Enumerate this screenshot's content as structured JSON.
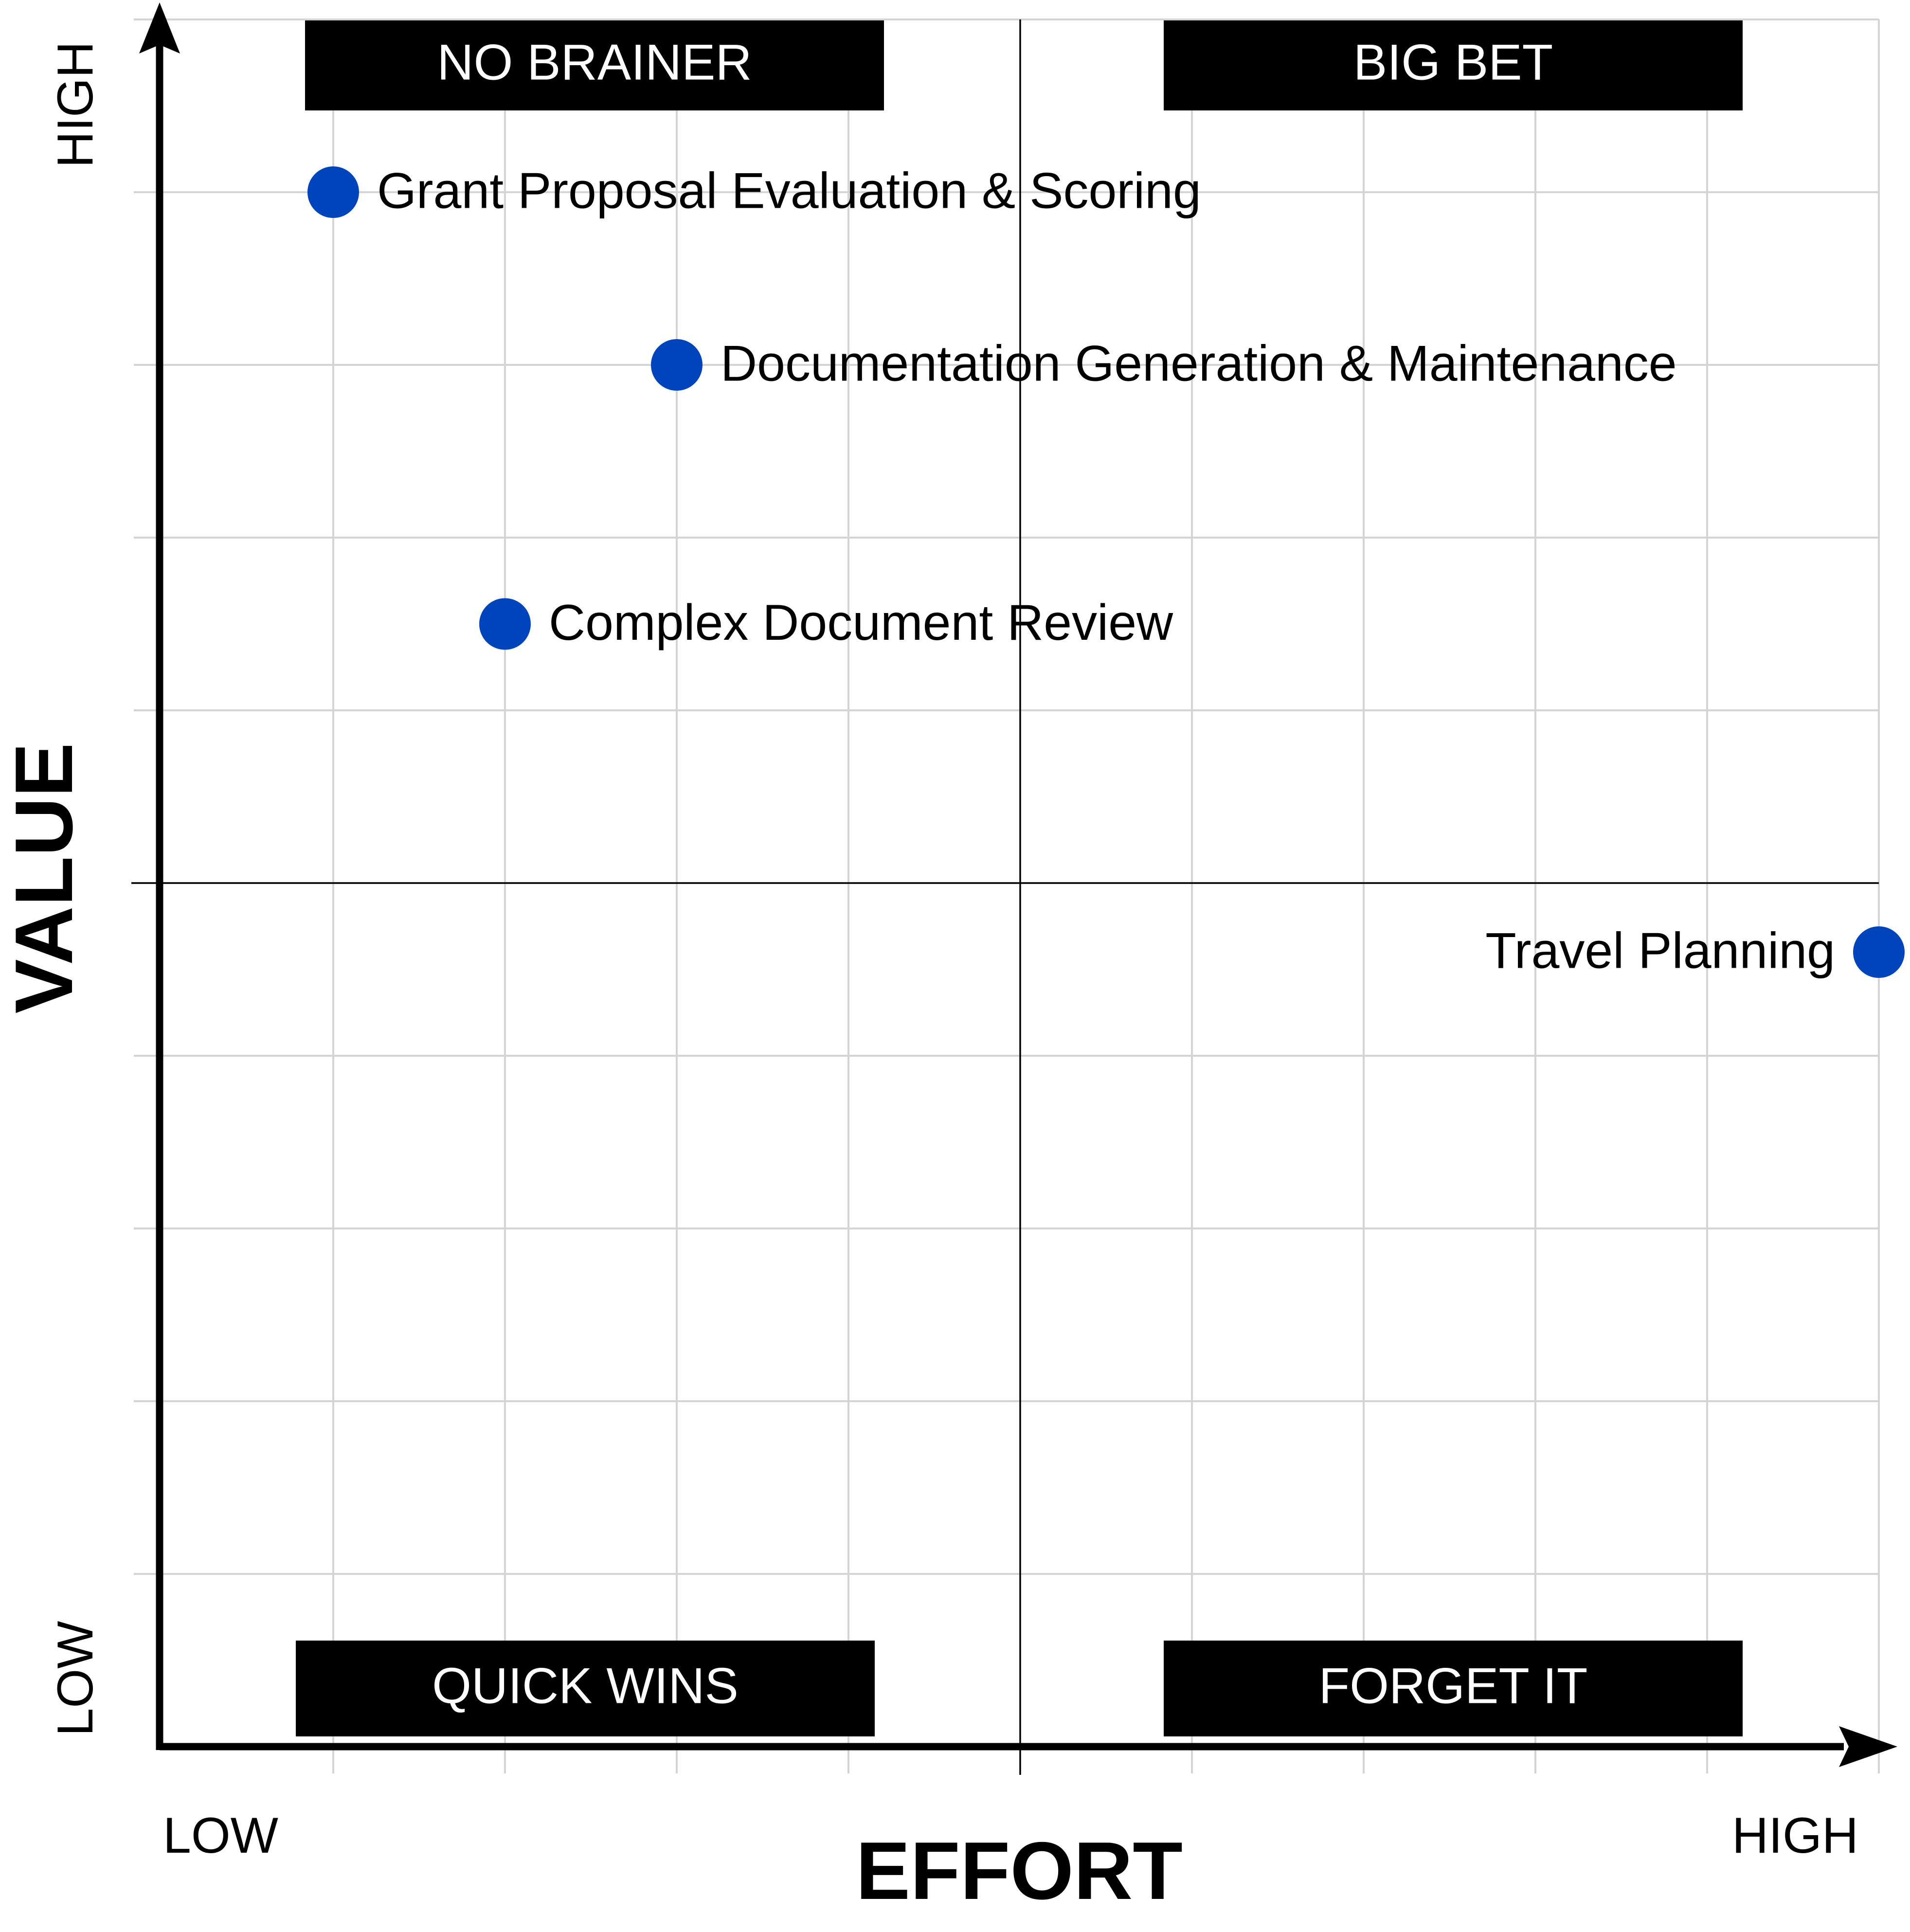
{
  "chart_data": {
    "type": "scatter",
    "xlabel": "EFFORT",
    "ylabel": "VALUE",
    "x_low_label": "LOW",
    "x_high_label": "HIGH",
    "y_low_label": "LOW",
    "y_high_label": "HIGH",
    "xlim": [
      0,
      10
    ],
    "ylim": [
      0,
      10
    ],
    "grid": true,
    "quadrants": {
      "top_left": "NO BRAINER",
      "top_right": "BIG BET",
      "bottom_left": "QUICK WINS",
      "bottom_right": "FORGET IT"
    },
    "points": [
      {
        "label": "Grant Proposal Evaluation & Scoring",
        "x": 1,
        "y": 9
      },
      {
        "label": "Documentation Generation & Maintenance",
        "x": 3,
        "y": 8
      },
      {
        "label": "Complex Document Review",
        "x": 2,
        "y": 6.5
      },
      {
        "label": "Travel Planning",
        "x": 10,
        "y": 4.6
      }
    ],
    "point_color": "#0044bb"
  }
}
